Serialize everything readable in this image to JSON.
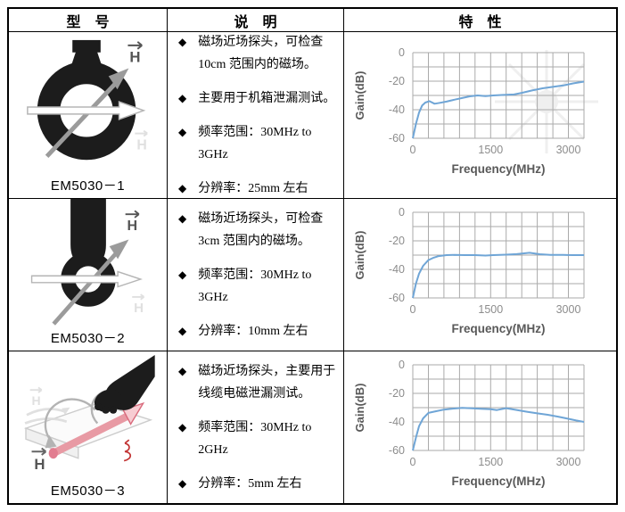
{
  "bullet_glyph": "◆",
  "colors": {
    "table_border": "#000000",
    "chart_line": "#6fa5d6",
    "chart_grid": "#aaaaaa",
    "chart_tick_text": "#8c8c8c",
    "chart_axis_label": "#595959",
    "probe_black": "#1c1c1c",
    "cable_pink": "#e89aa4"
  },
  "header": {
    "columns": [
      "型　号",
      "说　明",
      "特　性"
    ]
  },
  "rows": [
    {
      "model": "EM5030－1",
      "image": "large-ring-magnetic-field-probe",
      "h_label": "H",
      "bullets": [
        "磁场近场探头，可检查\n10cm 范围内的磁场。",
        "主要用于机箱泄漏测试。",
        "频率范围：30MHz to 3GHz",
        "分辨率：25mm 左右"
      ]
    },
    {
      "model": "EM5030－2",
      "image": "small-ring-magnetic-field-probe",
      "h_label": "H",
      "bullets": [
        "磁场近场探头，可检查\n3cm 范围内的磁场。",
        "频率范围：30MHz to 3GHz",
        "分辨率：10mm 左右"
      ]
    },
    {
      "model": "EM5030－3",
      "image": "hand-held-cable-leakage-probe",
      "h_label": "H",
      "bullets": [
        "磁场近场探头，主要用于\n线缆电磁泄漏测试。",
        "频率范围：30MHz to 2GHz",
        "分辨率：5mm 左右"
      ]
    }
  ],
  "chart_data": [
    {
      "type": "line",
      "title": "",
      "xlabel": "Frequency(MHz)",
      "ylabel": "Gain(dB)",
      "xlim": [
        0,
        3300
      ],
      "ylim": [
        -60,
        0
      ],
      "xticks": [
        0,
        1500,
        3000
      ],
      "yticks": [
        0,
        -20,
        -40,
        -60
      ],
      "xgrid_step": 300,
      "ygrid_step": 10,
      "grid": true,
      "legend": "none",
      "points": [
        [
          0,
          -60
        ],
        [
          60,
          -50
        ],
        [
          120,
          -42
        ],
        [
          180,
          -37
        ],
        [
          240,
          -35
        ],
        [
          320,
          -34
        ],
        [
          420,
          -35.8
        ],
        [
          520,
          -35.2
        ],
        [
          650,
          -34.3
        ],
        [
          800,
          -33
        ],
        [
          950,
          -31.8
        ],
        [
          1100,
          -30.6
        ],
        [
          1250,
          -30
        ],
        [
          1400,
          -30.5
        ],
        [
          1550,
          -30
        ],
        [
          1750,
          -29.6
        ],
        [
          1950,
          -29.3
        ],
        [
          2100,
          -28.2
        ],
        [
          2300,
          -26.5
        ],
        [
          2500,
          -25
        ],
        [
          2700,
          -24
        ],
        [
          2900,
          -23
        ],
        [
          3100,
          -21.5
        ],
        [
          3300,
          -20.3
        ]
      ]
    },
    {
      "type": "line",
      "title": "",
      "xlabel": "Frequency(MHz)",
      "ylabel": "Gain(dB)",
      "xlim": [
        0,
        3300
      ],
      "ylim": [
        -60,
        0
      ],
      "xticks": [
        0,
        1500,
        3000
      ],
      "yticks": [
        0,
        -20,
        -40,
        -60
      ],
      "xgrid_step": 300,
      "ygrid_step": 10,
      "grid": true,
      "legend": "none",
      "points": [
        [
          0,
          -60
        ],
        [
          60,
          -50
        ],
        [
          120,
          -43
        ],
        [
          200,
          -37.5
        ],
        [
          300,
          -33.5
        ],
        [
          400,
          -31.8
        ],
        [
          500,
          -30.7
        ],
        [
          650,
          -30
        ],
        [
          800,
          -29.9
        ],
        [
          1000,
          -30
        ],
        [
          1200,
          -30
        ],
        [
          1400,
          -30.3
        ],
        [
          1550,
          -30
        ],
        [
          1800,
          -29.7
        ],
        [
          2000,
          -29.3
        ],
        [
          2250,
          -28.4
        ],
        [
          2450,
          -29.4
        ],
        [
          2650,
          -29.8
        ],
        [
          2900,
          -29.9
        ],
        [
          3100,
          -30
        ],
        [
          3300,
          -30
        ]
      ]
    },
    {
      "type": "line",
      "title": "",
      "xlabel": "Frequency(MHz)",
      "ylabel": "Gain(dB)",
      "xlim": [
        0,
        3300
      ],
      "ylim": [
        -60,
        0
      ],
      "xticks": [
        0,
        1500,
        3000
      ],
      "yticks": [
        0,
        -20,
        -40,
        -60
      ],
      "xgrid_step": 300,
      "ygrid_step": 10,
      "grid": true,
      "legend": "none",
      "points": [
        [
          0,
          -60
        ],
        [
          60,
          -51
        ],
        [
          120,
          -43
        ],
        [
          200,
          -37.5
        ],
        [
          300,
          -33.7
        ],
        [
          450,
          -32.5
        ],
        [
          600,
          -31.4
        ],
        [
          800,
          -30.6
        ],
        [
          950,
          -30.2
        ],
        [
          1100,
          -30.4
        ],
        [
          1300,
          -30.8
        ],
        [
          1500,
          -31.1
        ],
        [
          1620,
          -31.7
        ],
        [
          1800,
          -30.4
        ],
        [
          2000,
          -31.6
        ],
        [
          2200,
          -32.9
        ],
        [
          2400,
          -34
        ],
        [
          2600,
          -35
        ],
        [
          2800,
          -36.3
        ],
        [
          3000,
          -37.8
        ],
        [
          3150,
          -39
        ],
        [
          3300,
          -40
        ]
      ]
    }
  ]
}
